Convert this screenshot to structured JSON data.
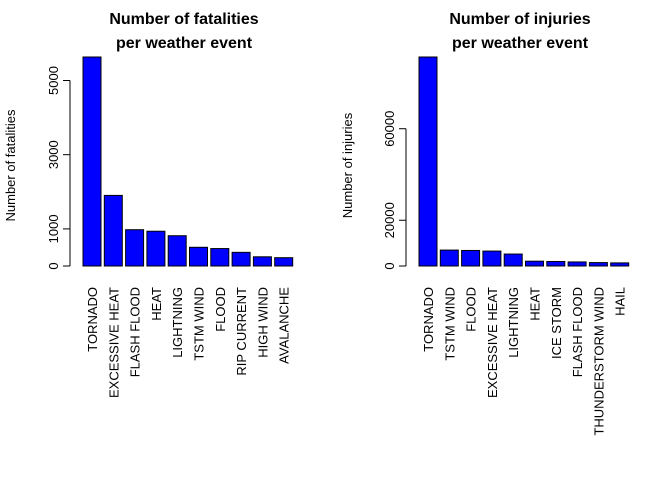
{
  "chart_data": [
    {
      "type": "bar",
      "title": [
        "Number of fatalities",
        "per weather event"
      ],
      "xlabel": "",
      "ylabel": "Number of fatalities",
      "categories": [
        "TORNADO",
        "EXCESSIVE HEAT",
        "FLASH FLOOD",
        "HEAT",
        "LIGHTNING",
        "TSTM WIND",
        "FLOOD",
        "RIP CURRENT",
        "HIGH WIND",
        "AVALANCHE"
      ],
      "values": [
        5633,
        1903,
        978,
        937,
        816,
        504,
        470,
        368,
        248,
        224
      ],
      "ylim": [
        0,
        5633
      ],
      "yticks": [
        0,
        1000,
        3000,
        5000
      ],
      "bar_color": "#0000ff",
      "grid": false
    },
    {
      "type": "bar",
      "title": [
        "Number of injuries",
        "per weather event"
      ],
      "xlabel": "",
      "ylabel": "Number of injuries",
      "categories": [
        "TORNADO",
        "TSTM WIND",
        "FLOOD",
        "EXCESSIVE HEAT",
        "LIGHTNING",
        "HEAT",
        "ICE STORM",
        "FLASH FLOOD",
        "THUNDERSTORM WIND",
        "HAIL"
      ],
      "values": [
        91346,
        6957,
        6789,
        6525,
        5230,
        2100,
        1975,
        1777,
        1488,
        1361
      ],
      "ylim": [
        0,
        91346
      ],
      "yticks": [
        0,
        20000,
        60000
      ],
      "bar_color": "#0000ff",
      "grid": false
    }
  ]
}
